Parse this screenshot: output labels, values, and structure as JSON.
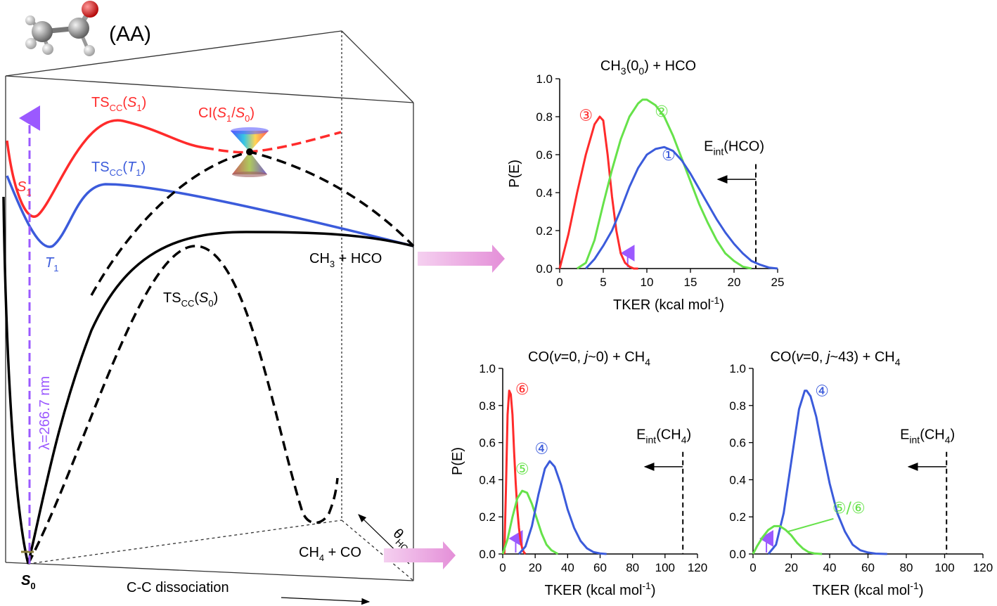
{
  "schematic": {
    "molecule_label": "(AA)",
    "s1_label": "S",
    "s1_sub": "1",
    "t1_label": "T",
    "t1_sub": "1",
    "s0_label": "S",
    "s0_sub": "0",
    "ts_s1": {
      "main": "TS",
      "sub": "CC",
      "open": "(",
      "state": "S",
      "state_sub": "1",
      "close": ")"
    },
    "ts_t1": {
      "main": "TS",
      "sub": "CC",
      "open": "(",
      "state": "T",
      "state_sub": "1",
      "close": ")"
    },
    "ts_s0": {
      "main": "TS",
      "sub": "CC",
      "open": "(",
      "state": "S",
      "state_sub": "0",
      "close": ")"
    },
    "ci": {
      "main": "CI(",
      "a": "S",
      "a_sub": "1",
      "slash": "/",
      "b": "S",
      "b_sub": "0",
      "close": ")"
    },
    "wavelength_label": "λ=266.7 nm",
    "ch3_hco_label": {
      "a": "CH",
      "a_sub": "3",
      "b": " + HCO"
    },
    "ch4_co_label": {
      "a": "CH",
      "a_sub": "4",
      "b": " + CO"
    },
    "theta_label": {
      "main": "θ",
      "sub": "HCO"
    },
    "cc_dissociation_label": "C-C dissociation",
    "colors": {
      "s1": "#ff2b2b",
      "t1": "#3b5bdb",
      "s0": "#000000",
      "laser": "#9b59ff",
      "arrow": "#e8a0e0"
    }
  },
  "chart_data": [
    {
      "type": "line",
      "title": {
        "a": "CH",
        "a_sub": "3",
        "b": "(0",
        "b_sub": "0",
        "c": ") + HCO"
      },
      "xlabel": {
        "text": "TKER (kcal mol",
        "sup": "-1",
        "close": ")"
      },
      "ylabel": "P(E)",
      "xlim": [
        0,
        25
      ],
      "ylim": [
        0,
        1.0
      ],
      "xticks": [
        0,
        5,
        10,
        15,
        20,
        25
      ],
      "yticks": [
        0.0,
        0.2,
        0.4,
        0.6,
        0.8,
        1.0
      ],
      "xtick_labels": [
        "0",
        "5",
        "10",
        "15",
        "20",
        "25"
      ],
      "ytick_labels": [
        "0.0",
        "0.2",
        "0.4",
        "0.6",
        "0.8",
        "1.0"
      ],
      "eint_x": 22.5,
      "eint_label": {
        "a": "E",
        "a_sub": "int",
        "b": "(HCO)"
      },
      "marker_x": 7.8,
      "series": [
        {
          "name": "③",
          "color": "#ff2b2b",
          "label_pos": [
            3.0,
            0.78
          ],
          "x": [
            0,
            1,
            2,
            3,
            4,
            4.6,
            5,
            5.5,
            6,
            6.5,
            7,
            7.5,
            8,
            8.5,
            9
          ],
          "y": [
            0,
            0.18,
            0.4,
            0.6,
            0.76,
            0.8,
            0.78,
            0.6,
            0.38,
            0.2,
            0.08,
            0.03,
            0.01,
            0,
            0
          ]
        },
        {
          "name": "②",
          "color": "#66e24a",
          "label_pos": [
            11.7,
            0.8
          ],
          "x": [
            2,
            3,
            4,
            5,
            6,
            7,
            8,
            9,
            9.5,
            10,
            11,
            12,
            13,
            14,
            15,
            16,
            17,
            18,
            19,
            20,
            21,
            22
          ],
          "y": [
            0,
            0.03,
            0.15,
            0.34,
            0.52,
            0.68,
            0.8,
            0.87,
            0.89,
            0.89,
            0.86,
            0.8,
            0.7,
            0.58,
            0.46,
            0.34,
            0.24,
            0.15,
            0.08,
            0.04,
            0.01,
            0
          ]
        },
        {
          "name": "①",
          "color": "#3b5bdb",
          "label_pos": [
            12.5,
            0.57
          ],
          "x": [
            3,
            4,
            5,
            6,
            7,
            8,
            9,
            10,
            11,
            12,
            13,
            14,
            15,
            16,
            17,
            18,
            19,
            20,
            21,
            22,
            23,
            24,
            25
          ],
          "y": [
            0,
            0.05,
            0.12,
            0.2,
            0.31,
            0.43,
            0.53,
            0.6,
            0.63,
            0.64,
            0.62,
            0.57,
            0.5,
            0.42,
            0.34,
            0.26,
            0.19,
            0.13,
            0.08,
            0.04,
            0.02,
            0.005,
            0
          ]
        }
      ]
    },
    {
      "type": "line",
      "title": {
        "a": "CO(",
        "a_italic": "v",
        "b": "=0, ",
        "b_italic": "j",
        "c": "~0) + CH",
        "c_sub": "4"
      },
      "xlabel": {
        "text": "TKER (kcal mol",
        "sup": "-1",
        "close": ")"
      },
      "ylabel": "P(E)",
      "xlim": [
        0,
        120
      ],
      "ylim": [
        0,
        1.0
      ],
      "xticks": [
        0,
        20,
        40,
        60,
        80,
        100,
        120
      ],
      "yticks": [
        0.0,
        0.2,
        0.4,
        0.6,
        0.8,
        1.0
      ],
      "xtick_labels": [
        "0",
        "20",
        "40",
        "60",
        "80",
        "100",
        "120"
      ],
      "ytick_labels": [
        "0.0",
        "0.2",
        "0.4",
        "0.6",
        "0.8",
        "1.0"
      ],
      "eint_x": 111,
      "eint_label": {
        "a": "E",
        "a_sub": "int",
        "b": "(CH",
        "b_sub": "4",
        "c": ")"
      },
      "marker_x": 8,
      "series": [
        {
          "name": "⑥",
          "color": "#ff2b2b",
          "label_pos": [
            12,
            0.86
          ],
          "x": [
            1,
            2,
            3,
            4,
            5,
            6,
            7,
            8,
            9,
            10,
            11,
            12,
            13,
            14
          ],
          "y": [
            0,
            0.35,
            0.75,
            0.88,
            0.86,
            0.75,
            0.55,
            0.38,
            0.24,
            0.14,
            0.07,
            0.03,
            0.01,
            0
          ]
        },
        {
          "name": "⑤",
          "color": "#66e24a",
          "label_pos": [
            12,
            0.43
          ],
          "x": [
            0,
            3,
            6,
            9,
            12,
            15,
            18,
            21,
            24,
            27,
            30,
            34
          ],
          "y": [
            0,
            0.08,
            0.2,
            0.3,
            0.34,
            0.33,
            0.27,
            0.19,
            0.11,
            0.05,
            0.02,
            0
          ]
        },
        {
          "name": "④",
          "color": "#3b5bdb",
          "label_pos": [
            24,
            0.54
          ],
          "x": [
            10,
            14,
            18,
            22,
            26,
            29,
            32,
            36,
            40,
            44,
            48,
            52,
            56,
            60,
            64
          ],
          "y": [
            0,
            0.04,
            0.15,
            0.32,
            0.46,
            0.5,
            0.47,
            0.37,
            0.24,
            0.14,
            0.07,
            0.03,
            0.01,
            0.003,
            0
          ]
        }
      ]
    },
    {
      "type": "line",
      "title": {
        "a": "CO(",
        "a_italic": "v",
        "b": "=0, ",
        "b_italic": "j",
        "c": "~43) + CH",
        "c_sub": "4"
      },
      "xlabel": {
        "text": "TKER (kcal mol",
        "sup": "-1",
        "close": ")"
      },
      "ylabel": "",
      "xlim": [
        0,
        120
      ],
      "ylim": [
        0,
        1.0
      ],
      "xticks": [
        0,
        20,
        40,
        60,
        80,
        100,
        120
      ],
      "yticks": [
        0.0,
        0.2,
        0.4,
        0.6,
        0.8,
        1.0
      ],
      "xtick_labels": [
        "0",
        "20",
        "40",
        "60",
        "80",
        "100",
        "120"
      ],
      "ytick_labels": [
        "0.0",
        "0.2",
        "0.4",
        "0.6",
        "0.8",
        "1.0"
      ],
      "eint_x": 101,
      "eint_label": {
        "a": "E",
        "a_sub": "int",
        "b": "(CH",
        "b_sub": "4",
        "c": ")"
      },
      "marker_x": 7,
      "series": [
        {
          "name": "④",
          "color": "#3b5bdb",
          "label_pos": [
            36,
            0.85
          ],
          "x": [
            8,
            12,
            16,
            20,
            24,
            27,
            28,
            30,
            33,
            36,
            40,
            44,
            48,
            52,
            56,
            60,
            64,
            70
          ],
          "y": [
            0,
            0.05,
            0.22,
            0.5,
            0.78,
            0.88,
            0.88,
            0.85,
            0.74,
            0.58,
            0.38,
            0.22,
            0.12,
            0.05,
            0.02,
            0.008,
            0.002,
            0
          ]
        },
        {
          "name": "⑤/⑥",
          "color": "#66e24a",
          "label_pos": [
            50,
            0.22
          ],
          "x": [
            0,
            2,
            5,
            8,
            11,
            14,
            17,
            20,
            23,
            26,
            29,
            32,
            36
          ],
          "y": [
            0,
            0.04,
            0.09,
            0.13,
            0.15,
            0.15,
            0.13,
            0.1,
            0.06,
            0.03,
            0.01,
            0.003,
            0
          ]
        }
      ]
    }
  ]
}
